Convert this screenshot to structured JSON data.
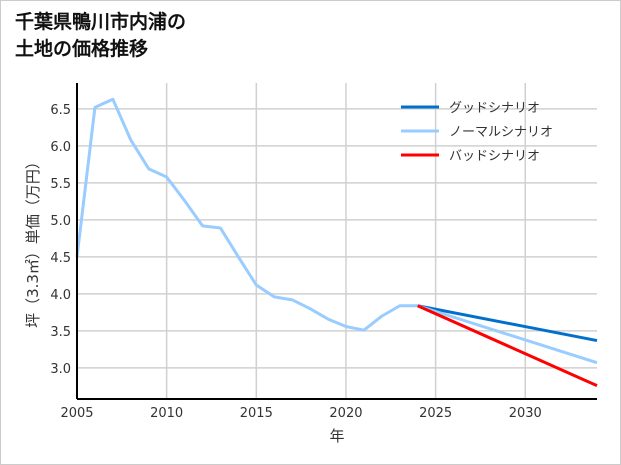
{
  "chart_data": {
    "type": "line",
    "title_lines": [
      "千葉県鴨川市内浦の",
      "土地の価格推移"
    ],
    "xlabel": "年",
    "ylabel": "坪（3.3㎡）単価（万円）",
    "xlim": [
      2005,
      2034
    ],
    "ylim": [
      2.58,
      6.85
    ],
    "xticks": [
      2005,
      2010,
      2015,
      2020,
      2025,
      2030
    ],
    "yticks": [
      3.0,
      3.5,
      4.0,
      4.5,
      5.0,
      5.5,
      6.0,
      6.5
    ],
    "grid": true,
    "legend_position": "top-right",
    "series": [
      {
        "name": "グッドシナリオ",
        "color": "#0070cc",
        "x": [
          2024,
          2034
        ],
        "y": [
          3.84,
          3.37
        ]
      },
      {
        "name": "ノーマルシナリオ",
        "color": "#99ccff",
        "x": [
          2005,
          2006,
          2007,
          2008,
          2009,
          2010,
          2011,
          2012,
          2013,
          2014,
          2015,
          2016,
          2017,
          2018,
          2019,
          2020,
          2021,
          2022,
          2023,
          2024,
          2034
        ],
        "y": [
          4.5,
          6.52,
          6.63,
          6.08,
          5.69,
          5.58,
          5.26,
          4.92,
          4.89,
          4.5,
          4.12,
          3.96,
          3.92,
          3.8,
          3.66,
          3.56,
          3.51,
          3.7,
          3.84,
          3.84,
          3.07
        ]
      },
      {
        "name": "バッドシナリオ",
        "color": "#ff0000",
        "x": [
          2024,
          2034
        ],
        "y": [
          3.84,
          2.76
        ]
      }
    ]
  }
}
